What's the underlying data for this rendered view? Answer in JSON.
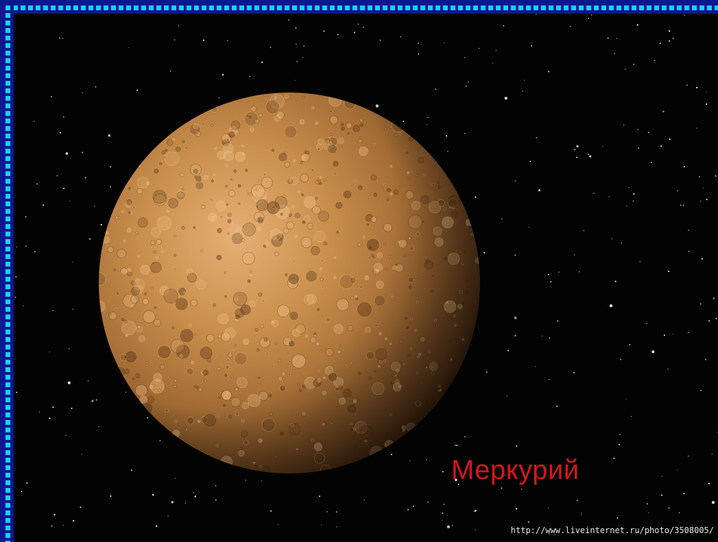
{
  "caption": "Меркурий",
  "watermark_url": "http://www.liveinternet.ru/photo/3508005/",
  "colors": {
    "frame_outer": "#0a1890",
    "frame_dots": "#1ad0ff",
    "space": "#030303",
    "planet_light": "#e0a868",
    "planet_mid": "#b47838",
    "planet_dark": "#3a2010",
    "caption": "#d4161a"
  }
}
